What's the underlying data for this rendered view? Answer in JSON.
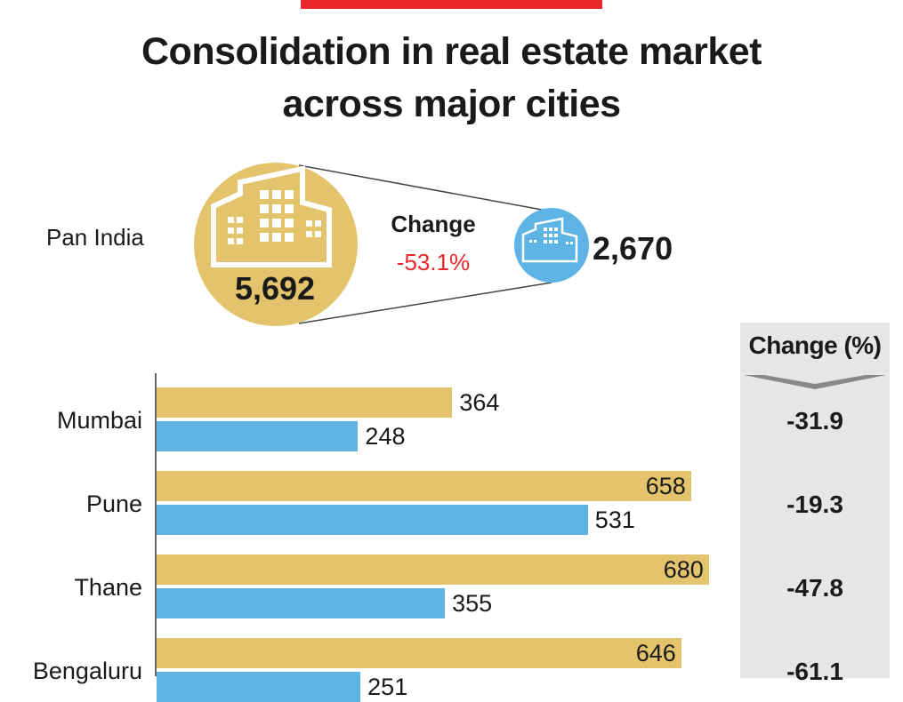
{
  "title_lines": [
    "Consolidation in real estate market",
    "across major cities"
  ],
  "pan_india": {
    "label": "Pan India",
    "before": "5,692",
    "after": "2,670",
    "change_label": "Change",
    "change_value": "-53.1%",
    "icons": [
      "building-icon",
      "building-icon"
    ]
  },
  "change_column": {
    "header": "Change (%)"
  },
  "colors": {
    "before": "#E3C36B",
    "after": "#5EB4E4",
    "accent": "#E8282B",
    "change_col": "#E6E6E5"
  },
  "chart_data": {
    "type": "bar",
    "orientation": "horizontal",
    "categories": [
      "Mumbai",
      "Pune",
      "Thane",
      "Bengaluru"
    ],
    "series": [
      {
        "values": [
          364,
          658,
          680,
          646
        ],
        "color": "#E3C36B"
      },
      {
        "values": [
          248,
          531,
          355,
          251
        ],
        "color": "#5EB4E4"
      }
    ],
    "change_pct": [
      "-31.9",
      "-19.3",
      "-47.8",
      "-61.1"
    ],
    "grid": false
  }
}
